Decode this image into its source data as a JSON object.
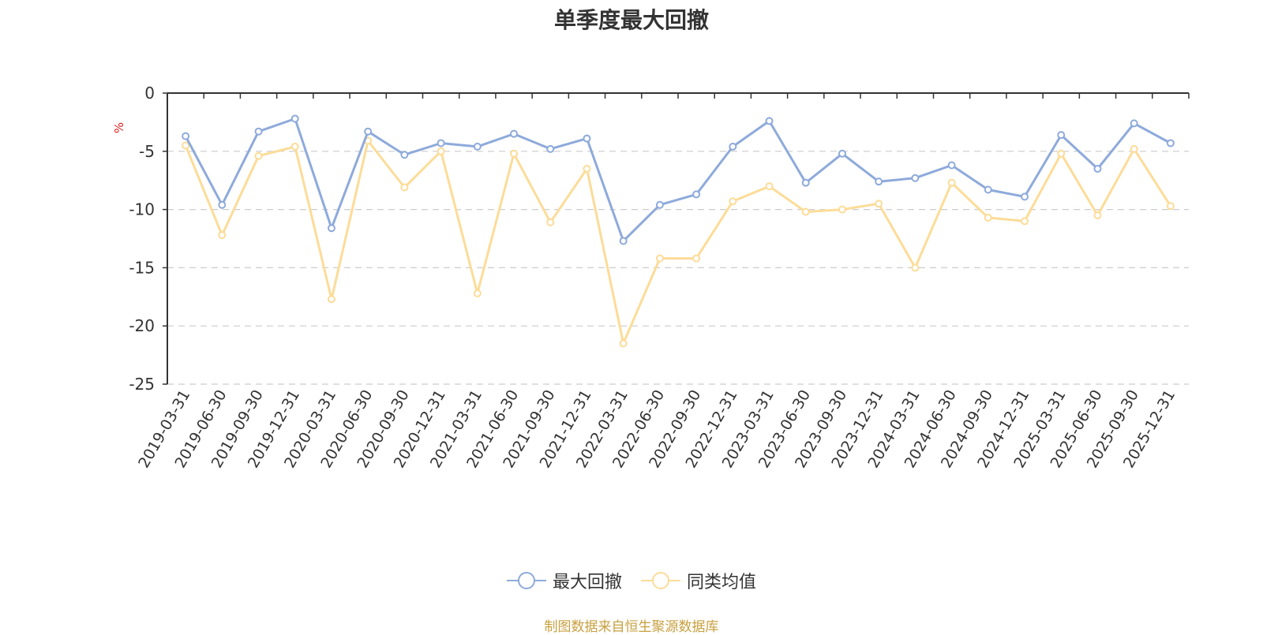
{
  "chart_data": {
    "type": "line",
    "title": "单季度最大回撤",
    "ylabel": "%",
    "ylim": [
      -25,
      0
    ],
    "yticks": [
      0,
      -5,
      -10,
      -15,
      -20,
      -25
    ],
    "grid": true,
    "legend_position": "bottom",
    "categories": [
      "2019-03-31",
      "2019-06-30",
      "2019-09-30",
      "2019-12-31",
      "2020-03-31",
      "2020-06-30",
      "2020-09-30",
      "2020-12-31",
      "2021-03-31",
      "2021-06-30",
      "2021-09-30",
      "2021-12-31",
      "2022-03-31",
      "2022-06-30",
      "2022-09-30",
      "2022-12-31",
      "2023-03-31",
      "2023-06-30",
      "2023-09-30",
      "2023-12-31",
      "2024-03-31",
      "2024-06-30",
      "2024-09-30",
      "2024-12-31",
      "2025-03-31",
      "2025-06-30",
      "2025-09-30",
      "2025-12-31"
    ],
    "series": [
      {
        "name": "最大回撤",
        "color": "#8eaadb",
        "values": [
          -3.7,
          -9.6,
          -3.3,
          -2.2,
          -11.6,
          -3.3,
          -5.3,
          -4.3,
          -4.6,
          -3.5,
          -4.8,
          -3.9,
          -12.7,
          -9.6,
          -8.7,
          -4.6,
          -2.4,
          -7.7,
          -5.2,
          -7.6,
          -7.3,
          -6.2,
          -8.3,
          -8.9,
          -3.6,
          -6.5,
          -2.6,
          -4.3
        ]
      },
      {
        "name": "同类均值",
        "color": "#fcdc98",
        "values": [
          -4.5,
          -12.2,
          -5.4,
          -4.6,
          -17.7,
          -4.1,
          -8.1,
          -5.0,
          -17.2,
          -5.2,
          -11.1,
          -6.5,
          -21.5,
          -14.2,
          -14.2,
          -9.3,
          -8.0,
          -10.2,
          -10.0,
          -9.5,
          -15.0,
          -7.7,
          -10.7,
          -11.0,
          -5.2,
          -10.5,
          -4.8,
          -9.7
        ]
      }
    ]
  },
  "source_note": "制图数据来自恒生聚源数据库"
}
